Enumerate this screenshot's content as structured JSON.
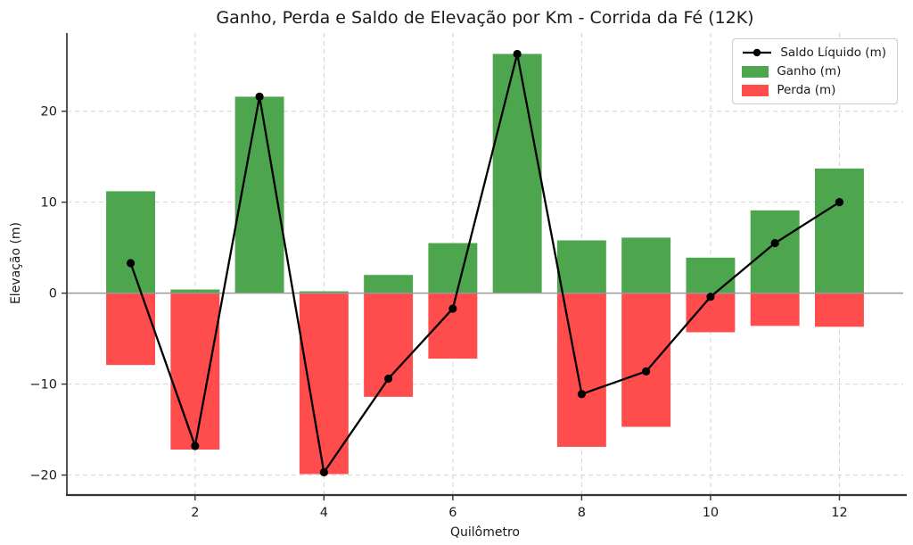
{
  "chart_data": {
    "type": "bar",
    "title": "Ganho, Perda e Saldo de Elevação por Km - Corrida da Fé (12K)",
    "xlabel": "Quilômetro",
    "ylabel": "Elevação (m)",
    "categories": [
      1,
      2,
      3,
      4,
      5,
      6,
      7,
      8,
      9,
      10,
      11,
      12
    ],
    "series": [
      {
        "name": "Ganho (m)",
        "type": "bar",
        "color": "#4da64d",
        "values": [
          11.2,
          0.4,
          21.6,
          0.2,
          2.0,
          5.5,
          26.3,
          5.8,
          6.1,
          3.9,
          9.1,
          13.7
        ]
      },
      {
        "name": "Perda (m)",
        "type": "bar",
        "color": "#ff4d4d",
        "values": [
          -7.9,
          -17.2,
          0.0,
          -19.9,
          -11.4,
          -7.2,
          0.0,
          -16.9,
          -14.7,
          -4.3,
          -3.6,
          -3.7
        ]
      },
      {
        "name": "Saldo Líquido (m)",
        "type": "line",
        "color": "#000000",
        "marker": "circle",
        "values": [
          3.3,
          -16.8,
          21.6,
          -19.7,
          -9.4,
          -1.7,
          26.3,
          -11.1,
          -8.6,
          -0.4,
          5.5,
          10.0
        ]
      }
    ],
    "legend": {
      "position": "upper right",
      "entries": [
        "Saldo Líquido (m)",
        "Ganho (m)",
        "Perda (m)"
      ]
    },
    "xticks": [
      2,
      4,
      6,
      8,
      10,
      12
    ],
    "xticklabels": [
      "2",
      "4",
      "6",
      "8",
      "10",
      "12"
    ],
    "yticks": [
      -20,
      -10,
      0,
      10,
      20
    ],
    "yticklabels": [
      "−20",
      "−10",
      "0",
      "10",
      "20"
    ],
    "xlim": [
      0.01,
      12.99
    ],
    "ylim": [
      -22.2,
      28.6
    ],
    "bar_width": 0.76,
    "grid": {
      "visible": true,
      "style": "dashed",
      "color": "#d2d2d2"
    },
    "zero_line_color": "#999999",
    "axis_color": "#333333",
    "text_color": "#1a1a1a"
  }
}
